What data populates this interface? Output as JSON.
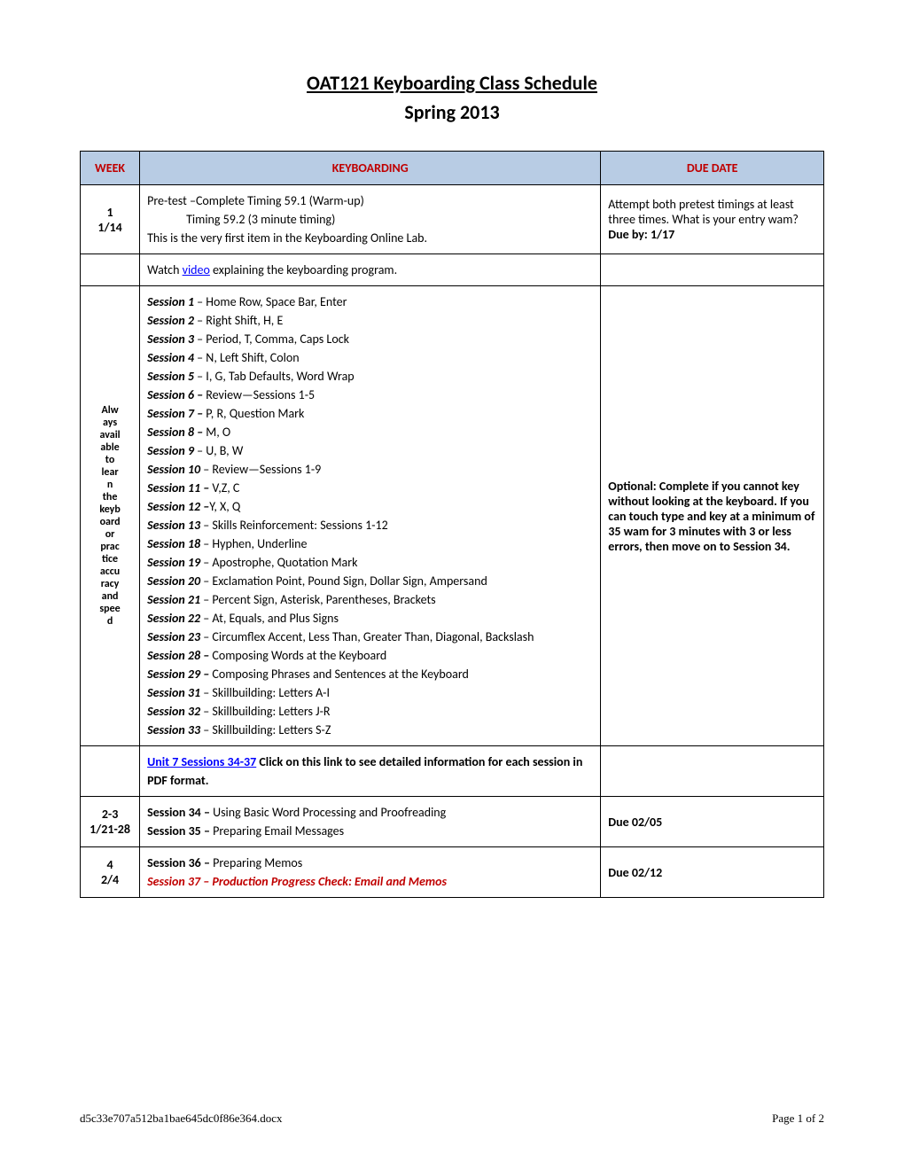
{
  "title": "OAT121 Keyboarding Class Schedule",
  "subtitle": "Spring 2013",
  "headers": {
    "week": "WEEK",
    "keyboarding": "KEYBOARDING",
    "due": "DUE DATE"
  },
  "row1": {
    "week_line1": "1",
    "week_line2": "1/14",
    "key_line1": "Pre-test –Complete Timing 59.1 (Warm-up)",
    "key_line2": "Timing 59.2 (3 minute timing)",
    "key_line3": "This is the very first item in the Keyboarding Online Lab.",
    "due_line1": "Attempt both pretest timings at least three times. What is your entry wam?",
    "due_line2": "Due by: 1/17"
  },
  "row2": {
    "key_prefix": "Watch ",
    "key_link": "video",
    "key_suffix": " explaining the keyboarding program."
  },
  "row3": {
    "week_text": "Always available to learn the keyboard or practice accuracy and speed",
    "sessions": [
      {
        "name": "Session 1",
        "desc": " – Home Row, Space Bar, Enter"
      },
      {
        "name": "Session 2",
        "desc": " – Right Shift, H, E"
      },
      {
        "name": "Session 3",
        "desc": " – Period, T, Comma, Caps Lock"
      },
      {
        "name": "Session 4",
        "desc": " – N, Left Shift, Colon"
      },
      {
        "name": "Session 5",
        "desc": " – I, G, Tab Defaults, Word Wrap"
      },
      {
        "name": "Session 6 –",
        "desc": " Review—Sessions 1-5"
      },
      {
        "name": "Session 7 –",
        "desc": " P, R, Question Mark"
      },
      {
        "name": "Session 8 –",
        "desc": " M, O"
      },
      {
        "name": "Session 9",
        "desc": " – U, B, W"
      },
      {
        "name": "Session 10",
        "desc": " – Review—Sessions 1-9"
      },
      {
        "name": "Session 11 –",
        "desc": " V,Z, C"
      },
      {
        "name": "Session 12 –",
        "desc": "Y, X, Q"
      },
      {
        "name": "Session 13",
        "desc": " – Skills Reinforcement: Sessions 1-12"
      },
      {
        "name": "Session 18",
        "desc": " – Hyphen, Underline"
      },
      {
        "name": "Session 19",
        "desc": " – Apostrophe, Quotation Mark"
      },
      {
        "name": "Session 20",
        "desc": " – Exclamation Point, Pound Sign, Dollar Sign, Ampersand"
      },
      {
        "name": "Session 21",
        "desc": " – Percent Sign, Asterisk, Parentheses, Brackets"
      },
      {
        "name": "Session 22",
        "desc": " – At, Equals, and Plus Signs"
      },
      {
        "name": "Session 23",
        "desc": " – Circumflex Accent, Less Than, Greater Than, Diagonal, Backslash"
      },
      {
        "name": "Session 28 –",
        "desc": " Composing Words at the Keyboard"
      },
      {
        "name": "Session 29 –",
        "desc": " Composing Phrases and Sentences at the Keyboard"
      },
      {
        "name": "Session 31",
        "desc": " – Skillbuilding: Letters A-I"
      },
      {
        "name": "Session 32",
        "desc": " – Skillbuilding: Letters J-R"
      },
      {
        "name": "Session 33",
        "desc": " – Skillbuilding: Letters S-Z"
      }
    ],
    "due_text": "Optional: Complete if you cannot key without looking at the keyboard. If you can touch type and key at a minimum of 35 wam for 3 minutes with 3 or less errors, then move on to Session 34."
  },
  "row4": {
    "key_link": "Unit 7 Sessions 34-37",
    "key_bold": " Click on this link to see detailed information for each session in PDF format."
  },
  "row5": {
    "week_line1": "2-3",
    "week_line2": "1/21-28",
    "s34_name": "Session 34 – ",
    "s34_desc": "Using Basic Word Processing and Proofreading",
    "s35_name": "Session 35 – ",
    "s35_desc": "Preparing Email Messages",
    "due": "Due 02/05"
  },
  "row6": {
    "week_line1": "4",
    "week_line2": "2/4",
    "s36_name": "Session 36 – ",
    "s36_desc": "Preparing Memos",
    "s37": "Session 37 – Production Progress Check: Email and Memos",
    "due": "Due 02/12"
  },
  "footer": {
    "filename": "d5c33e707a512ba1bae645dc0f86e364.docx",
    "page": "Page 1 of 2"
  },
  "colors": {
    "header_bg": "#b8cce4",
    "header_text": "#c00000",
    "border": "#000000",
    "link": "#0000ff",
    "red": "#c00000"
  }
}
